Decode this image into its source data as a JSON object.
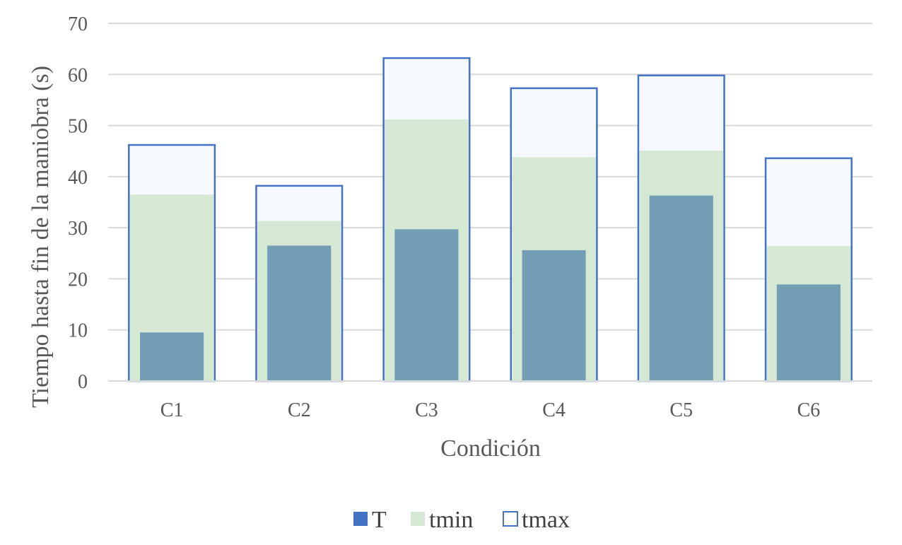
{
  "chart_data": {
    "type": "bar",
    "title": "",
    "xlabel": "Condición",
    "ylabel": "Tiempo hasta fin de la maniobra (s)",
    "categories": [
      "C1",
      "C2",
      "C3",
      "C4",
      "C5",
      "C6"
    ],
    "ylim": [
      0,
      70
    ],
    "yticks": [
      0,
      10,
      20,
      30,
      40,
      50,
      60,
      70
    ],
    "grid": true,
    "legend_position": "bottom",
    "series": [
      {
        "name": "T",
        "values": [
          9.5,
          26.5,
          29.7,
          25.6,
          36.3,
          18.9
        ],
        "color": "#729db4",
        "legend_color": "#4472c4"
      },
      {
        "name": "tmin",
        "values": [
          36.5,
          31.3,
          51.2,
          43.8,
          45.1,
          26.4
        ],
        "color": "#d5e8d4"
      },
      {
        "name": "tmax",
        "values": [
          46.2,
          38.2,
          63.2,
          57.3,
          59.8,
          43.6
        ],
        "color": "#f5f9fd",
        "stroke": "#4472c4"
      }
    ]
  }
}
